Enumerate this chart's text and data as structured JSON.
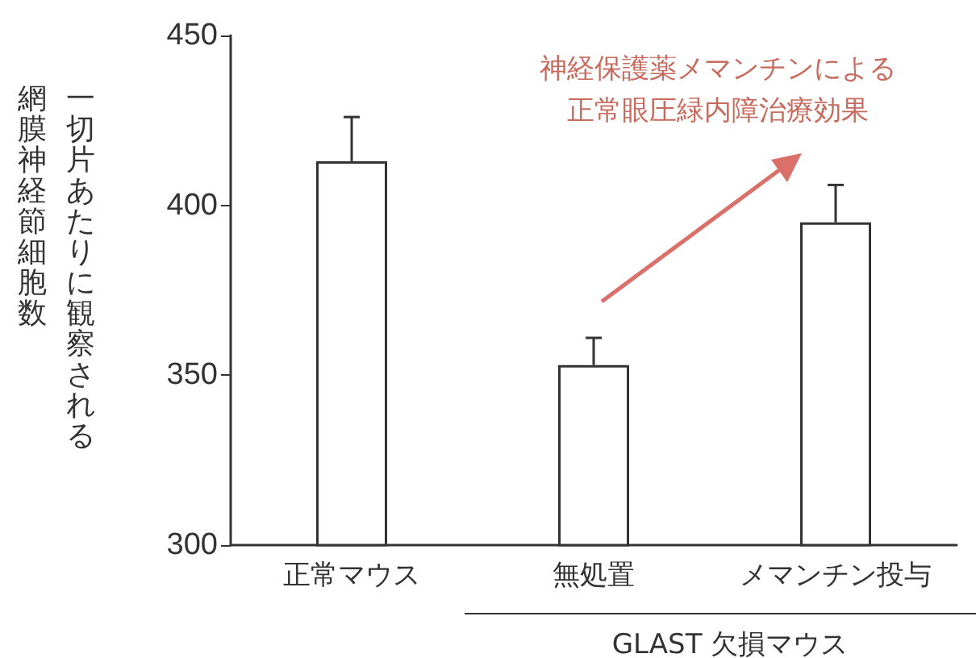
{
  "chart_data": {
    "type": "bar",
    "ylabel": "一切片あたりに観察される網膜神経節細胞数",
    "categories": [
      "正常マウス",
      "無処置",
      "メマンチン投与"
    ],
    "values": [
      413,
      353,
      395
    ],
    "errors": [
      [
        413,
        426
      ],
      [
        353,
        361
      ],
      [
        395,
        406
      ]
    ],
    "color": "#ffffff",
    "ylim": [
      300,
      450
    ],
    "yticks": [
      300,
      350,
      400,
      450
    ],
    "grid": false,
    "annotations": [
      "神経保護薬メマンチンによる",
      "正常眼圧緑内障治療効果",
      "GLAST 欠損マウス"
    ]
  }
}
